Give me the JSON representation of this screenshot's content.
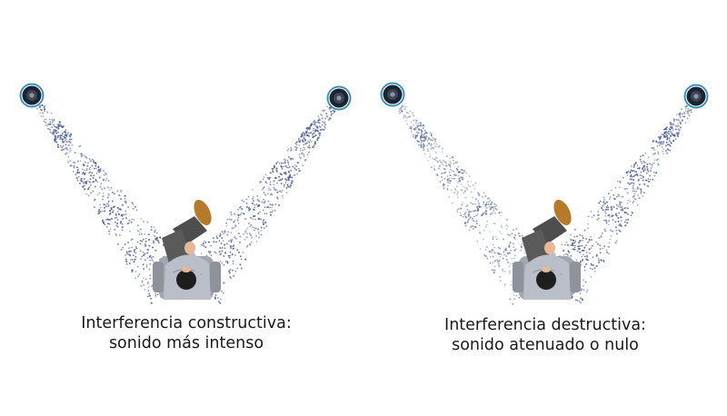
{
  "panels": [
    {
      "caption_line1": "Interferencia constructiva:",
      "caption_line2": "sonido más intenso"
    },
    {
      "caption_line1": "Interferencia destructiva:",
      "caption_line2": "sonido atenuado o nulo"
    }
  ],
  "colors": {
    "wave_dots": "#4a5a96",
    "speaker_ring": "#3a95c8",
    "speaker_cone": "#1c2430",
    "shirt": "#b9bec8",
    "trousers": "#4e4e4e",
    "shoe": "#b57a2a",
    "skin": "#e6b896",
    "hair": "#1e1e1e",
    "chair": "#a2a6ae"
  }
}
